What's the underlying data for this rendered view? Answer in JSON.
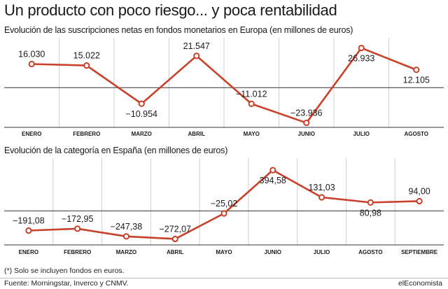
{
  "title": "Un producto con poco riesgo... y poca rentabilidad",
  "note": "(*) Solo se incluyen fondos en euros.",
  "source": "Fuente: Morningstar, Inverco y CNMV.",
  "brand": "elEconomista",
  "colors": {
    "line": "#c8412b",
    "grid": "#cfcfcf",
    "zero": "#333333"
  },
  "chart_data": [
    {
      "type": "line",
      "title": "Evolución de las suscripciones netas en fondos monetarios en Europa (en millones de euros)",
      "categories": [
        "ENERO",
        "FEBRERO",
        "MARZO",
        "ABRIL",
        "MAYO",
        "JUNIO",
        "JULIO",
        "AGOSTO"
      ],
      "values": [
        16030,
        15022,
        -10954,
        21547,
        -11012,
        -23936,
        26933,
        12105
      ],
      "labels": [
        "16.030",
        "15.022",
        "−10.954",
        "21.547",
        "−11.012",
        "−23.936",
        "26.933",
        "12.105"
      ],
      "ylim": [
        -27000,
        31000
      ],
      "grid": true
    },
    {
      "type": "line",
      "title": "Evolución de la categoría en España (en millones de euros)",
      "categories": [
        "ENERO",
        "FEBRERO",
        "MARZO",
        "ABRIL",
        "MAYO",
        "JUNIO",
        "JULIO",
        "AGOSTO",
        "SEPTIEMBRE"
      ],
      "values": [
        -191.08,
        -172.95,
        -247.38,
        -272.07,
        -25.02,
        394.58,
        131.03,
        80.98,
        94.0
      ],
      "labels": [
        "−191,08",
        "−172,95",
        "−247,38",
        "−272,07",
        "−25,02",
        "394,58",
        "131,03",
        "80,98",
        "94,00"
      ],
      "ylim": [
        -330,
        470
      ],
      "grid": true
    }
  ]
}
